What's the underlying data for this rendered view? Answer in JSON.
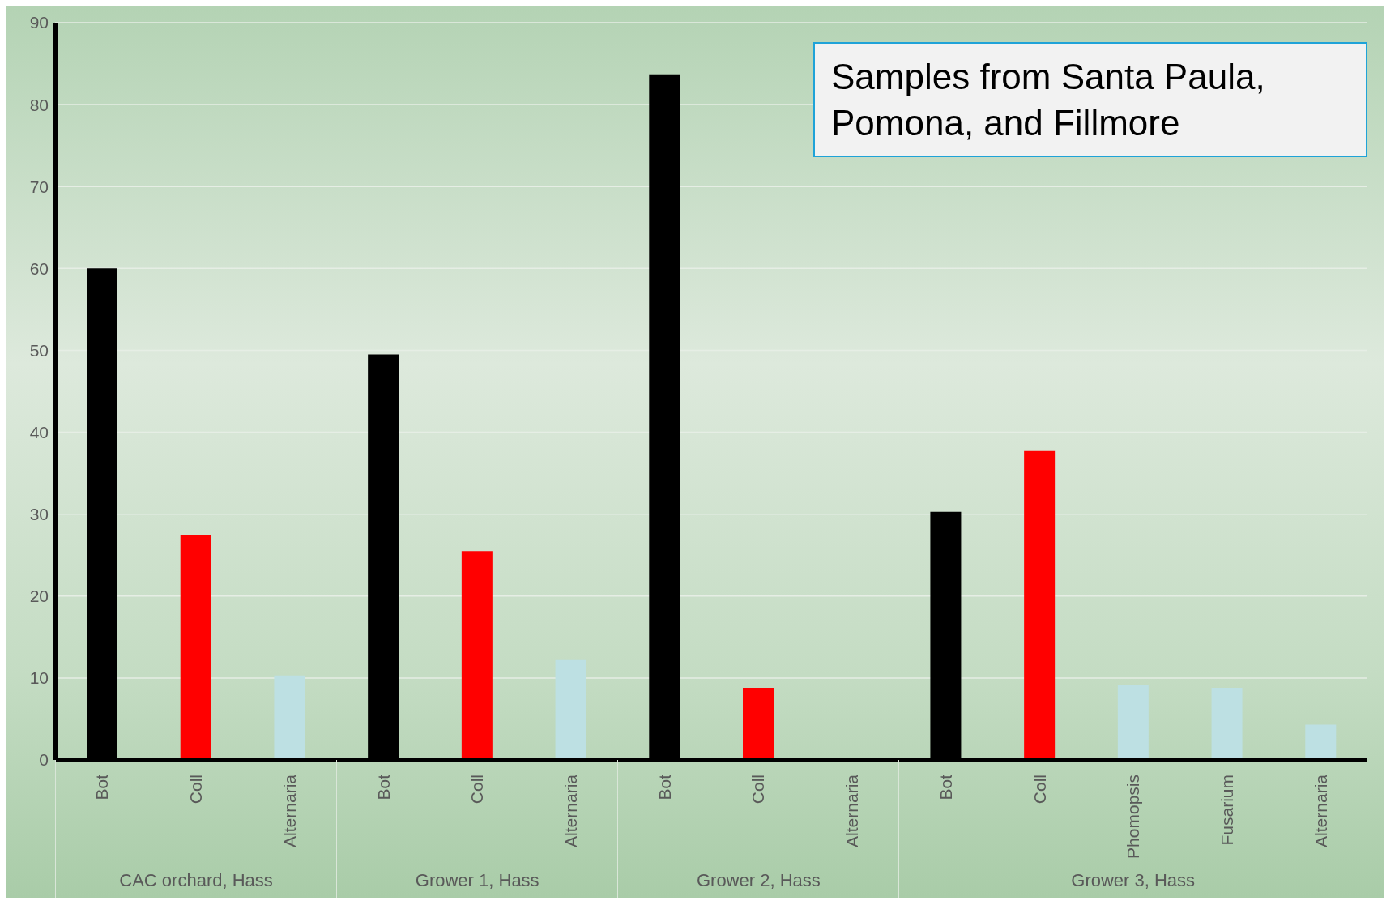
{
  "chart_data": {
    "type": "bar",
    "title": "Samples from Santa Paula, Pomona,  and Fillmore",
    "categories": [
      "Bot",
      "Coll",
      "Alternaria",
      "Bot",
      "Coll",
      "Alternaria",
      "Bot",
      "Coll",
      "Alternaria",
      "Bot",
      "Coll",
      "Phomopsis",
      "Fusarium",
      "Alternaria"
    ],
    "values": [
      60,
      27.5,
      10.3,
      49.5,
      25.5,
      12.2,
      83.7,
      8.8,
      0,
      30.3,
      37.7,
      9.2,
      8.8,
      4.3
    ],
    "colors": [
      "#000000",
      "#ff0000",
      "#bde0e3",
      "#000000",
      "#ff0000",
      "#bde0e3",
      "#000000",
      "#ff0000",
      "#bde0e3",
      "#000000",
      "#ff0000",
      "#bde0e3",
      "#bde0e3",
      "#bde0e3"
    ],
    "annotations": [
      "CAC orchard, Hass",
      "Grower 1, Hass",
      "Grower 2, Hass",
      "Grower 3, Hass"
    ],
    "ylim": [
      0,
      90
    ],
    "yticks": [
      0,
      10,
      20,
      30,
      40,
      50,
      60,
      70,
      80,
      90
    ],
    "grid": "y"
  }
}
